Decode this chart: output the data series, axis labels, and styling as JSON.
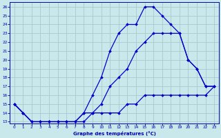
{
  "title": "Graphe des températures (°C)",
  "background_color": "#c8e8ec",
  "grid_color": "#a8c8cc",
  "line_color": "#0000cc",
  "spine_color": "#0000aa",
  "xlim": [
    -0.5,
    23.5
  ],
  "ylim": [
    12.8,
    26.5
  ],
  "xticks": [
    0,
    1,
    2,
    3,
    4,
    5,
    6,
    7,
    8,
    9,
    10,
    11,
    12,
    13,
    14,
    15,
    16,
    17,
    18,
    19,
    20,
    21,
    22,
    23
  ],
  "yticks": [
    13,
    14,
    15,
    16,
    17,
    18,
    19,
    20,
    21,
    22,
    23,
    24,
    25,
    26
  ],
  "curve1_x": [
    0,
    1,
    2,
    3,
    4,
    5,
    6,
    7,
    8,
    9,
    10,
    11,
    12,
    13,
    14,
    15,
    16,
    17,
    18,
    19,
    20,
    21,
    22,
    23
  ],
  "curve1_y": [
    15,
    14,
    13,
    13,
    13,
    13,
    13,
    13,
    14,
    16,
    18,
    21,
    23,
    24,
    24,
    26,
    26,
    25,
    24,
    23,
    20,
    19,
    17,
    17
  ],
  "curve2_x": [
    0,
    1,
    2,
    3,
    4,
    5,
    6,
    7,
    8,
    9,
    10,
    11,
    12,
    13,
    14,
    15,
    16,
    17,
    18,
    19,
    20,
    21,
    22,
    23
  ],
  "curve2_y": [
    15,
    14,
    13,
    13,
    13,
    13,
    13,
    13,
    13,
    14,
    15,
    17,
    18,
    19,
    21,
    22,
    23,
    23,
    23,
    23,
    20,
    19,
    17,
    17
  ],
  "curve3_x": [
    0,
    1,
    2,
    3,
    4,
    5,
    6,
    7,
    8,
    9,
    10,
    11,
    12,
    13,
    14,
    15,
    16,
    17,
    18,
    19,
    20,
    21,
    22,
    23
  ],
  "curve3_y": [
    15,
    14,
    13,
    13,
    13,
    13,
    13,
    13,
    14,
    14,
    14,
    14,
    14,
    15,
    15,
    16,
    16,
    16,
    16,
    16,
    16,
    16,
    16,
    17
  ]
}
